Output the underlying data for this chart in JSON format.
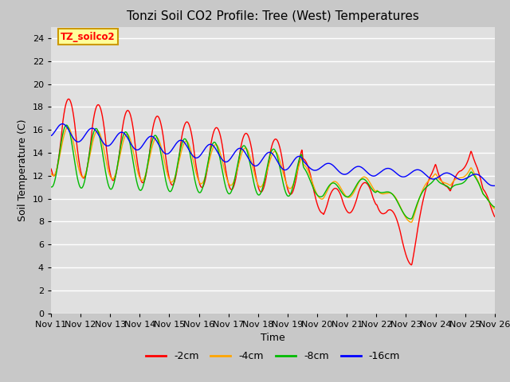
{
  "title": "Tonzi Soil CO2 Profile: Tree (West) Temperatures",
  "xlabel": "Time",
  "ylabel": "Soil Temperature (C)",
  "ylim": [
    0,
    25
  ],
  "yticks": [
    0,
    2,
    4,
    6,
    8,
    10,
    12,
    14,
    16,
    18,
    20,
    22,
    24
  ],
  "x_labels": [
    "Nov 11",
    "Nov 12",
    "Nov 13",
    "Nov 14",
    "Nov 15",
    "Nov 16",
    "Nov 17",
    "Nov 18",
    "Nov 19",
    "Nov 20",
    "Nov 21",
    "Nov 22",
    "Nov 23",
    "Nov 24",
    "Nov 25",
    "Nov 26"
  ],
  "legend_label": "TZ_soilco2",
  "series_labels": [
    "-2cm",
    "-4cm",
    "-8cm",
    "-16cm"
  ],
  "series_colors": [
    "#ff0000",
    "#ffa500",
    "#00bb00",
    "#0000ff"
  ],
  "fig_bg_color": "#c8c8c8",
  "plot_bg_color": "#e0e0e0",
  "title_fontsize": 11,
  "axis_fontsize": 9,
  "tick_fontsize": 8,
  "legend_box_color": "#ffff99",
  "legend_box_edge": "#cc9900",
  "linewidth": 1.0
}
